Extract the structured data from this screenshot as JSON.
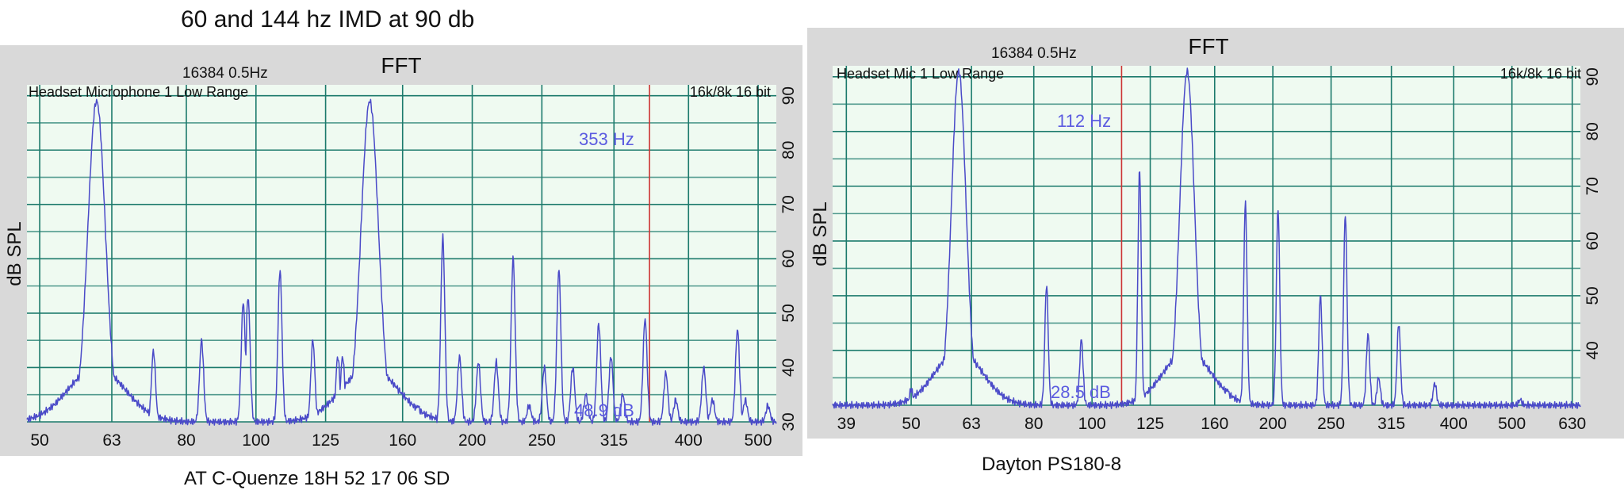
{
  "page": {
    "title": "60 and 144 hz IMD at 90 db",
    "caption_left": "AT C-Quenze 18H 52 17 06 SD",
    "caption_right": "Dayton PS180-8"
  },
  "colors": {
    "trace": "#4a4ac8",
    "grid": "#1c7a6c",
    "cursor": "#cc3333",
    "plot_background": "#effaf1",
    "readout": "#5b5be0"
  },
  "chart_data": [
    {
      "type": "line",
      "title": "FFT",
      "header_settings": "16384  0.5Hz",
      "input_label": "Headset Microphone 1 Low Range",
      "format_label": "16k/8k 16 bit",
      "ylabel": "dB SPL",
      "xscale": "log",
      "xlim": [
        48,
        530
      ],
      "ylim": [
        30,
        92
      ],
      "x_ticks": [
        "50",
        "63",
        "80",
        "100",
        "125",
        "160",
        "200",
        "250",
        "315",
        "400",
        "500"
      ],
      "y_ticks": [
        "30",
        "40",
        "50",
        "60",
        "70",
        "80",
        "90"
      ],
      "cursor": {
        "x": 353,
        "freq_label": "353 Hz",
        "level_label": "48.9 dB"
      },
      "noise_floor": 30,
      "peaks": [
        {
          "f": 60,
          "db": 89
        },
        {
          "f": 72,
          "db": 43
        },
        {
          "f": 84,
          "db": 45
        },
        {
          "f": 96,
          "db": 52
        },
        {
          "f": 97.5,
          "db": 53
        },
        {
          "f": 108,
          "db": 58
        },
        {
          "f": 120,
          "db": 45
        },
        {
          "f": 130,
          "db": 42
        },
        {
          "f": 132,
          "db": 42
        },
        {
          "f": 144,
          "db": 89
        },
        {
          "f": 168,
          "db": 33
        },
        {
          "f": 182,
          "db": 64
        },
        {
          "f": 192,
          "db": 42
        },
        {
          "f": 204,
          "db": 41
        },
        {
          "f": 216,
          "db": 41
        },
        {
          "f": 228,
          "db": 60
        },
        {
          "f": 240,
          "db": 33
        },
        {
          "f": 252,
          "db": 40
        },
        {
          "f": 264,
          "db": 58
        },
        {
          "f": 276,
          "db": 40
        },
        {
          "f": 288,
          "db": 35
        },
        {
          "f": 300,
          "db": 48
        },
        {
          "f": 312,
          "db": 42
        },
        {
          "f": 324,
          "db": 35
        },
        {
          "f": 348,
          "db": 49
        },
        {
          "f": 372,
          "db": 39
        },
        {
          "f": 384,
          "db": 34
        },
        {
          "f": 420,
          "db": 40
        },
        {
          "f": 432,
          "db": 34
        },
        {
          "f": 468,
          "db": 47
        },
        {
          "f": 480,
          "db": 34
        },
        {
          "f": 516,
          "db": 33
        }
      ]
    },
    {
      "type": "line",
      "title": "FFT",
      "header_settings": "16384  0.5Hz",
      "input_label": "Headset Mic 1 Low Range",
      "format_label": "16k/8k 16 bit",
      "ylabel": "dB SPL",
      "xscale": "log",
      "xlim": [
        37,
        650
      ],
      "ylim": [
        30,
        92
      ],
      "x_ticks": [
        "39",
        "50",
        "63",
        "80",
        "100",
        "125",
        "160",
        "200",
        "250",
        "315",
        "400",
        "500",
        "630"
      ],
      "y_ticks": [
        "40",
        "50",
        "60",
        "70",
        "80",
        "90"
      ],
      "cursor": {
        "x": 112,
        "freq_label": "112 Hz",
        "level_label": "28.5 dB"
      },
      "noise_floor": 30,
      "peaks": [
        {
          "f": 50,
          "db": 33
        },
        {
          "f": 60,
          "db": 91
        },
        {
          "f": 84,
          "db": 52
        },
        {
          "f": 96,
          "db": 42
        },
        {
          "f": 120,
          "db": 73
        },
        {
          "f": 144,
          "db": 91
        },
        {
          "f": 168,
          "db": 33
        },
        {
          "f": 180,
          "db": 67
        },
        {
          "f": 204,
          "db": 66
        },
        {
          "f": 240,
          "db": 50
        },
        {
          "f": 264,
          "db": 65
        },
        {
          "f": 288,
          "db": 43
        },
        {
          "f": 300,
          "db": 35
        },
        {
          "f": 324,
          "db": 45
        },
        {
          "f": 372,
          "db": 34
        },
        {
          "f": 516,
          "db": 31
        }
      ]
    }
  ]
}
